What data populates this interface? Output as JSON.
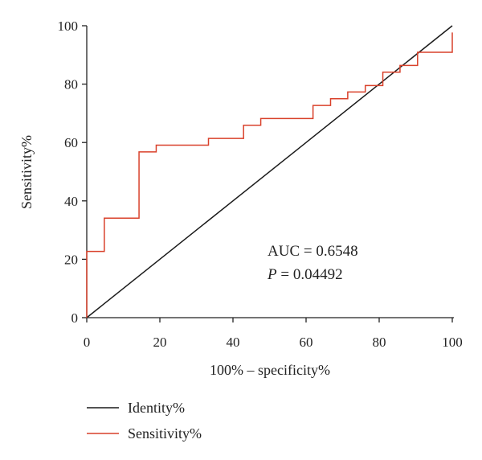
{
  "chart_data": {
    "type": "line",
    "xlabel": "100% – specificity%",
    "ylabel": "Sensitivity%",
    "xlim": [
      0,
      100
    ],
    "ylim": [
      0,
      100
    ],
    "x_ticks": [
      "0",
      "20",
      "40",
      "60",
      "80",
      "100"
    ],
    "y_ticks": [
      "0",
      "20",
      "40",
      "60",
      "80",
      "100"
    ],
    "grid": false,
    "legend_placement": "bottom-left",
    "annotations": {
      "auc_text": "AUC = 0.6548",
      "p_italic": "P",
      "p_rest": " = 0.04492"
    },
    "series": [
      {
        "name": "Identity%",
        "color": "#1a1a1a",
        "x": [
          0,
          100
        ],
        "y": [
          0,
          100
        ]
      },
      {
        "name": "Sensitivity%",
        "color": "#d9412b",
        "x": [
          0,
          0,
          4.8,
          4.8,
          14.3,
          14.3,
          19,
          19,
          33.3,
          33.3,
          42.9,
          42.9,
          47.6,
          47.6,
          61.9,
          61.9,
          66.7,
          66.7,
          71.4,
          71.4,
          76.2,
          76.2,
          81,
          81,
          85.7,
          85.7,
          90.5,
          90.5,
          100,
          100
        ],
        "y": [
          0,
          22.7,
          22.7,
          34.1,
          34.1,
          56.8,
          56.8,
          59.1,
          59.1,
          61.4,
          61.4,
          65.9,
          65.9,
          68.2,
          68.2,
          72.7,
          72.7,
          75,
          75,
          77.3,
          77.3,
          79.5,
          79.5,
          84.1,
          84.1,
          86.4,
          86.4,
          90.9,
          90.9,
          97.7
        ]
      }
    ]
  }
}
